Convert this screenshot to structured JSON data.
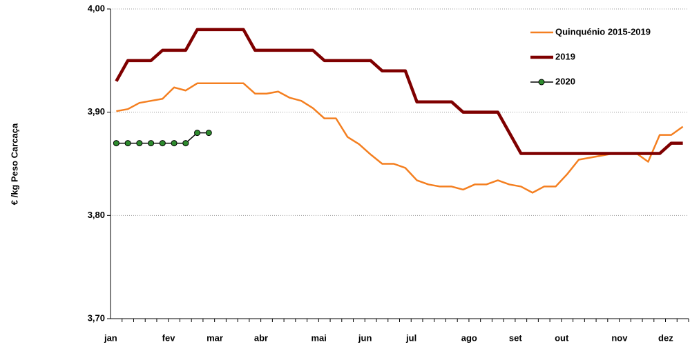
{
  "chart_data": {
    "type": "line",
    "y_label": "€ /kg Peso Carcaça",
    "categories": [
      "jan",
      null,
      null,
      null,
      null,
      "fev",
      null,
      null,
      null,
      "mar",
      null,
      null,
      null,
      "abr",
      null,
      null,
      null,
      null,
      "mai",
      null,
      null,
      null,
      "jun",
      null,
      null,
      null,
      "jul",
      null,
      null,
      null,
      null,
      "ago",
      null,
      null,
      null,
      "set",
      null,
      null,
      null,
      "out",
      null,
      null,
      null,
      null,
      "nov",
      null,
      null,
      null,
      "dez",
      null
    ],
    "ylim": [
      3.7,
      4.0
    ],
    "yticks": [
      {
        "value": 3.7,
        "label": "3,70"
      },
      {
        "value": 3.8,
        "label": "3,80"
      },
      {
        "value": 3.9,
        "label": "3,90"
      },
      {
        "value": 4.0,
        "label": "4,00"
      }
    ],
    "grid": true,
    "legend": "top-right",
    "series": [
      {
        "name": "Quinquénio 2015-2019",
        "color": "#f47f20",
        "width": 2.5,
        "marker": false,
        "values": [
          3.901,
          3.903,
          3.909,
          3.911,
          3.913,
          3.924,
          3.921,
          3.928,
          3.928,
          3.928,
          3.928,
          3.928,
          3.918,
          3.918,
          3.92,
          3.914,
          3.911,
          3.904,
          3.894,
          3.894,
          3.876,
          3.869,
          3.859,
          3.85,
          3.85,
          3.846,
          3.834,
          3.83,
          3.828,
          3.828,
          3.825,
          3.83,
          3.83,
          3.834,
          3.83,
          3.828,
          3.822,
          3.828,
          3.828,
          3.84,
          3.854,
          3.856,
          3.858,
          3.86,
          3.86,
          3.86,
          3.852,
          3.878,
          3.878,
          3.886
        ]
      },
      {
        "name": "2019",
        "color": "#7f0000",
        "width": 4.5,
        "marker": false,
        "values": [
          3.93,
          3.95,
          3.95,
          3.95,
          3.96,
          3.96,
          3.96,
          3.98,
          3.98,
          3.98,
          3.98,
          3.98,
          3.96,
          3.96,
          3.96,
          3.96,
          3.96,
          3.96,
          3.95,
          3.95,
          3.95,
          3.95,
          3.95,
          3.94,
          3.94,
          3.94,
          3.91,
          3.91,
          3.91,
          3.91,
          3.9,
          3.9,
          3.9,
          3.9,
          3.88,
          3.86,
          3.86,
          3.86,
          3.86,
          3.86,
          3.86,
          3.86,
          3.86,
          3.86,
          3.86,
          3.86,
          3.86,
          3.86,
          3.87,
          3.87
        ]
      },
      {
        "name": "2020",
        "color": "#000000",
        "marker_color": "#2e8b2e",
        "width": 1.5,
        "marker": true,
        "values": [
          3.87,
          3.87,
          3.87,
          3.87,
          3.87,
          3.87,
          3.87,
          3.88,
          3.88,
          null,
          null,
          null,
          null,
          null,
          null,
          null,
          null,
          null,
          null,
          null,
          null,
          null,
          null,
          null,
          null,
          null,
          null,
          null,
          null,
          null,
          null,
          null,
          null,
          null,
          null,
          null,
          null,
          null,
          null,
          null,
          null,
          null,
          null,
          null,
          null,
          null,
          null,
          null,
          null,
          null
        ]
      }
    ]
  }
}
